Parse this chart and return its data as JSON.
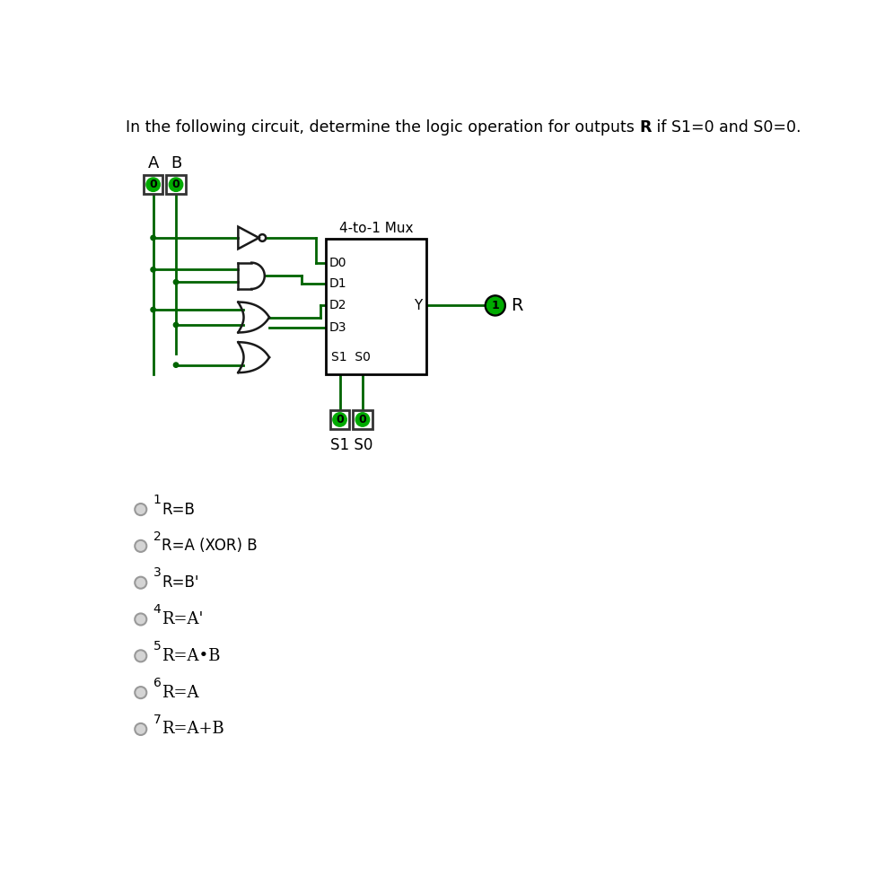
{
  "bg_color": "#ffffff",
  "gate_color": "#006400",
  "wire_color": "#006400",
  "gate_line_color": "#1a1a1a",
  "mux_label": "4-to-1 Mux",
  "mux_inputs": [
    "D0",
    "D1",
    "D2",
    "D3"
  ],
  "output_Y": "Y",
  "s_label": "S1 S0",
  "choices": [
    {
      "num": "1",
      "text": "R=B",
      "serif": false
    },
    {
      "num": "2",
      "text": "R=A (XOR) B",
      "serif": false
    },
    {
      "num": "3",
      "text": "R=B'",
      "serif": false
    },
    {
      "num": "4",
      "text": "R=A'",
      "serif": true
    },
    {
      "num": "5",
      "text": "R=A•B",
      "serif": true
    },
    {
      "num": "6",
      "text": "R=A",
      "serif": true
    },
    {
      "num": "7",
      "text": "R=A+B",
      "serif": true
    }
  ]
}
